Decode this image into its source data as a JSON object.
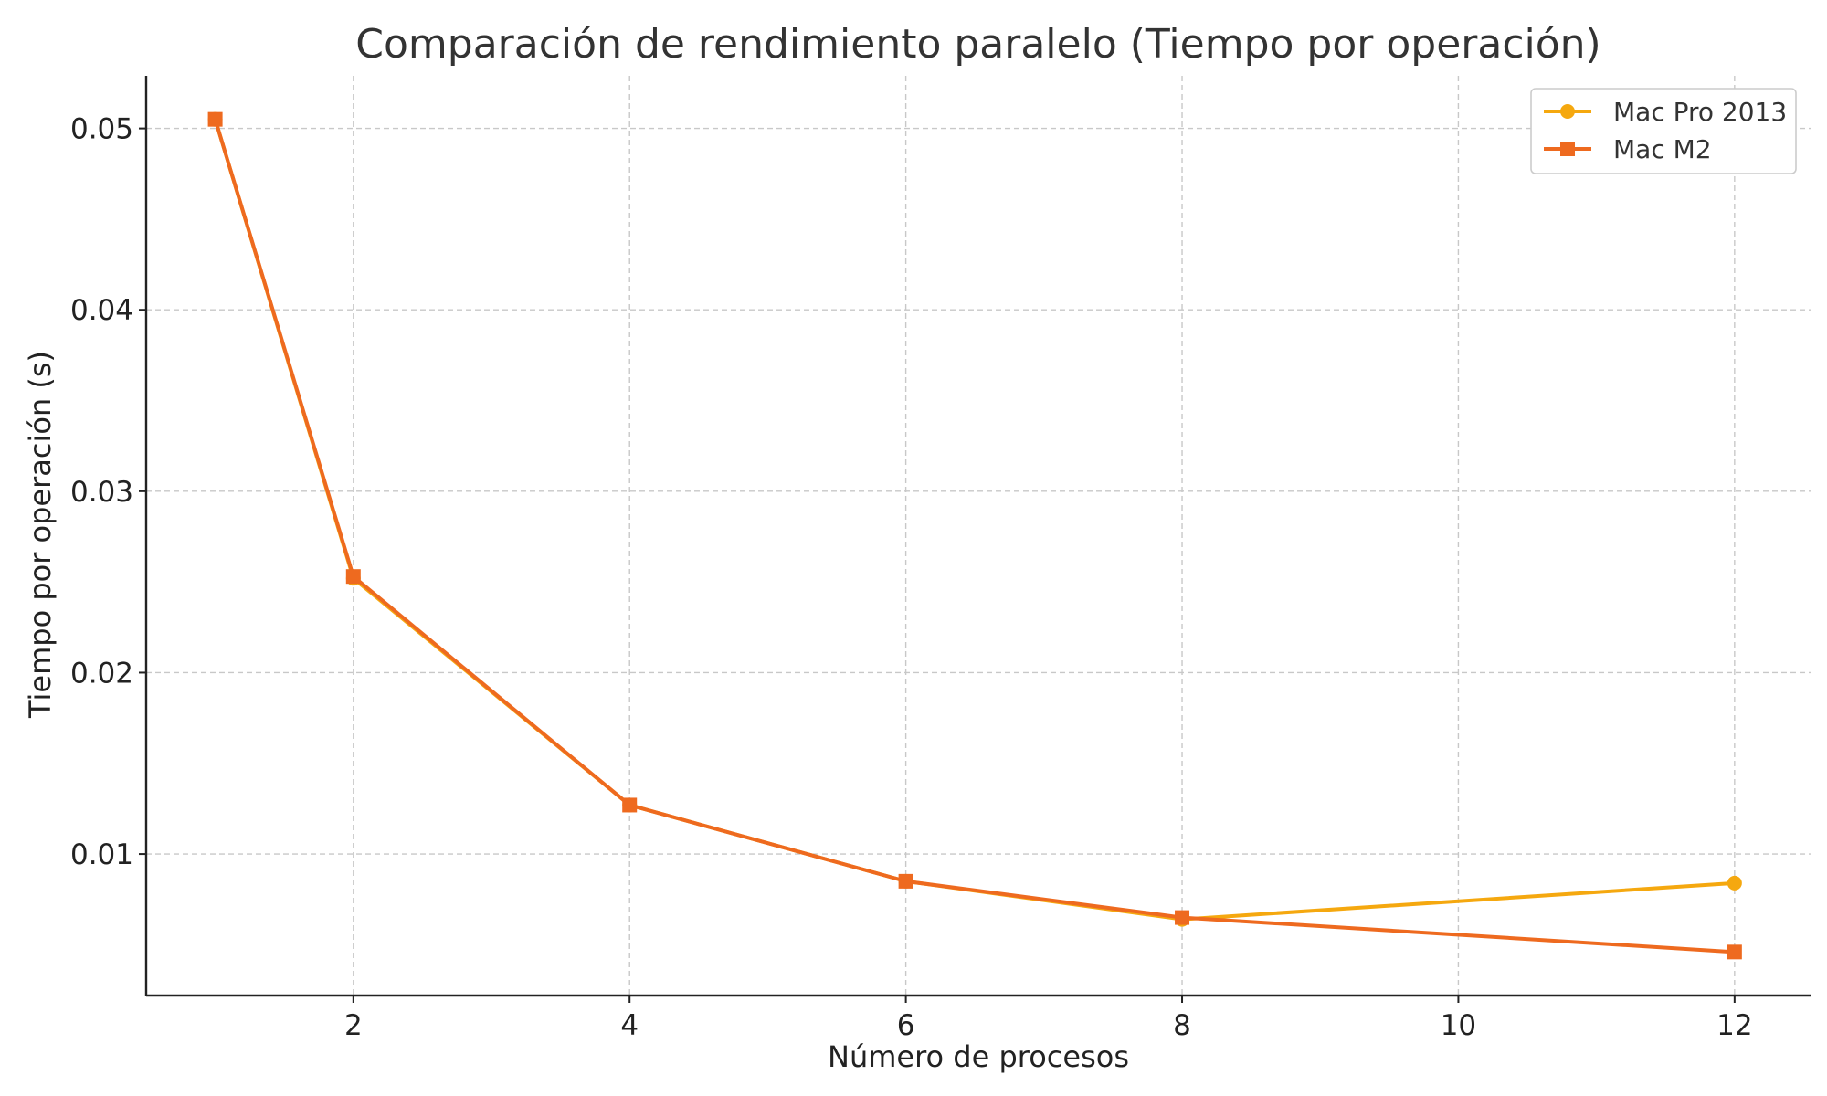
{
  "chart_data": {
    "type": "line",
    "title": "Comparación de rendimiento paralelo (Tiempo por operación)",
    "xlabel": "Número de procesos",
    "ylabel": "Tiempo por operación (s)",
    "xlim": [
      0.5,
      12.55
    ],
    "ylim": [
      0.0022,
      0.0529
    ],
    "x_ticks": [
      2,
      4,
      6,
      8,
      10,
      12
    ],
    "x_tick_labels": [
      "2",
      "4",
      "6",
      "8",
      "10",
      "12"
    ],
    "y_ticks": [
      0.01,
      0.02,
      0.03,
      0.04,
      0.05
    ],
    "y_tick_labels": [
      "0.01",
      "0.02",
      "0.03",
      "0.04",
      "0.05"
    ],
    "grid": true,
    "legend_position": "top-right",
    "series": [
      {
        "name": "Mac Pro 2013",
        "color": "#F5A80F",
        "marker": "circle",
        "x": [
          1,
          2,
          4,
          6,
          8,
          12
        ],
        "y": [
          0.0505,
          0.0252,
          0.0127,
          0.0085,
          0.0064,
          0.0084
        ]
      },
      {
        "name": "Mac M2",
        "color": "#EE6A1F",
        "marker": "square",
        "x": [
          1,
          2,
          4,
          6,
          8,
          12
        ],
        "y": [
          0.0505,
          0.0253,
          0.0127,
          0.0085,
          0.0065,
          0.0046
        ]
      }
    ]
  }
}
